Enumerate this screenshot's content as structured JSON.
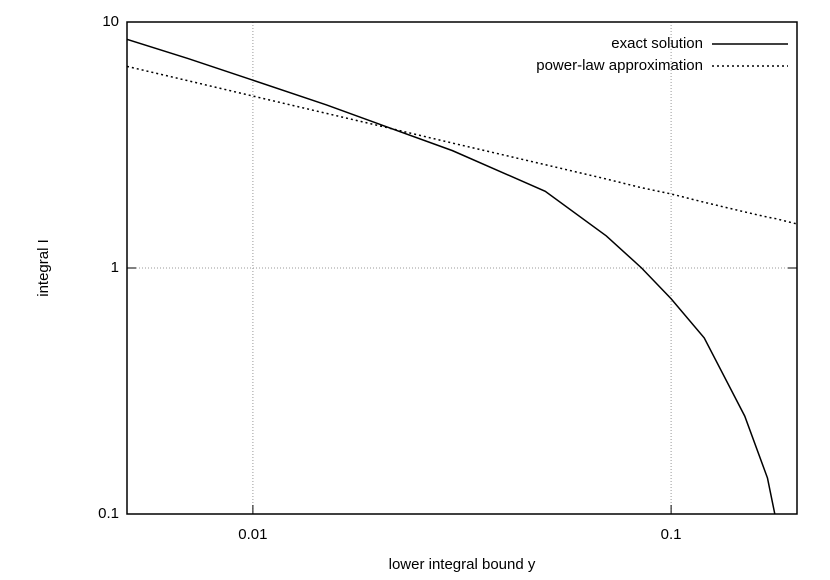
{
  "chart_data": {
    "type": "line",
    "xlabel": "lower integral bound y",
    "ylabel": "integral I",
    "x": [
      0.005,
      0.007,
      0.01,
      0.015,
      0.02,
      0.03,
      0.05,
      0.07,
      0.085,
      0.1,
      0.12,
      0.15,
      0.17,
      0.177,
      0.2
    ],
    "series": [
      {
        "name": "exact solution",
        "color": "#000000",
        "dash": "solid",
        "values": [
          8.5,
          7.1,
          5.8,
          4.6,
          3.85,
          3.0,
          2.05,
          1.35,
          1.0,
          0.75,
          0.52,
          0.25,
          0.14,
          0.1,
          null
        ]
      },
      {
        "name": "power-law approximation",
        "color": "#000000",
        "dash": "dotted",
        "values": [
          6.6,
          5.77,
          5.0,
          4.25,
          3.79,
          3.22,
          2.63,
          2.3,
          2.12,
          2.0,
          1.85,
          1.69,
          1.61,
          1.59,
          1.51
        ]
      }
    ],
    "xlim": [
      0.005,
      0.2
    ],
    "ylim": [
      0.1,
      10
    ],
    "xticks": [
      0.01,
      0.1
    ],
    "yticks": [
      0.1,
      1,
      10
    ],
    "xscale": "log",
    "yscale": "log",
    "grid": true,
    "legend": "upper right"
  }
}
